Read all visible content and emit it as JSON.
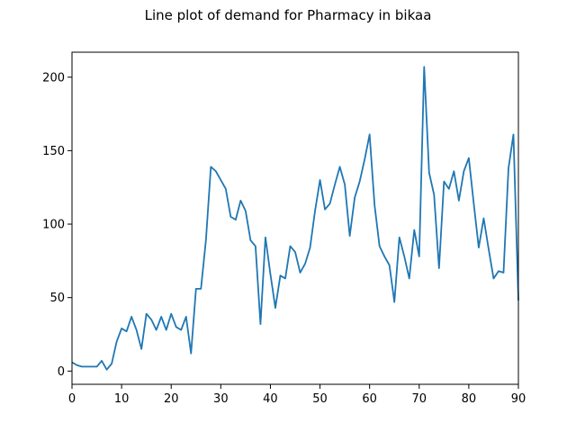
{
  "chart_data": {
    "type": "line",
    "title": "Line plot of demand for Pharmacy in bikaa",
    "xlabel": "",
    "ylabel": "",
    "xlim": [
      0,
      90
    ],
    "ylim": [
      -9,
      217
    ],
    "xticks": [
      0,
      10,
      20,
      30,
      40,
      50,
      60,
      70,
      80,
      90
    ],
    "yticks": [
      0,
      50,
      100,
      150,
      200
    ],
    "grid": false,
    "series": [
      {
        "color": "#1f77b4",
        "x": [
          0,
          1,
          2,
          3,
          4,
          5,
          6,
          7,
          8,
          9,
          10,
          11,
          12,
          13,
          14,
          15,
          16,
          17,
          18,
          19,
          20,
          21,
          22,
          23,
          24,
          25,
          26,
          27,
          28,
          29,
          30,
          31,
          32,
          33,
          34,
          35,
          36,
          37,
          38,
          39,
          40,
          41,
          42,
          43,
          44,
          45,
          46,
          47,
          48,
          49,
          50,
          51,
          52,
          53,
          54,
          55,
          56,
          57,
          58,
          59,
          60,
          61,
          62,
          63,
          64,
          65,
          66,
          67,
          68,
          69,
          70,
          71,
          72,
          73,
          74,
          75,
          76,
          77,
          78,
          79,
          80,
          81,
          82,
          83,
          84,
          85,
          86,
          87,
          88,
          89,
          90
        ],
        "values": [
          6,
          4,
          3,
          3,
          3,
          3,
          7,
          1,
          5,
          20,
          29,
          27,
          37,
          28,
          15,
          39,
          35,
          28,
          37,
          28,
          39,
          30,
          28,
          37,
          12,
          56,
          56,
          89,
          139,
          136,
          130,
          124,
          105,
          103,
          116,
          109,
          89,
          85,
          32,
          91,
          66,
          43,
          65,
          63,
          85,
          81,
          67,
          73,
          84,
          109,
          130,
          110,
          114,
          127,
          139,
          127,
          92,
          118,
          129,
          144,
          161,
          113,
          85,
          78,
          72,
          47,
          91,
          78,
          63,
          96,
          78,
          207,
          135,
          120,
          70,
          129,
          124,
          136,
          116,
          136,
          145,
          114,
          84,
          104,
          83,
          63,
          68,
          67,
          138,
          161,
          48
        ]
      }
    ]
  }
}
